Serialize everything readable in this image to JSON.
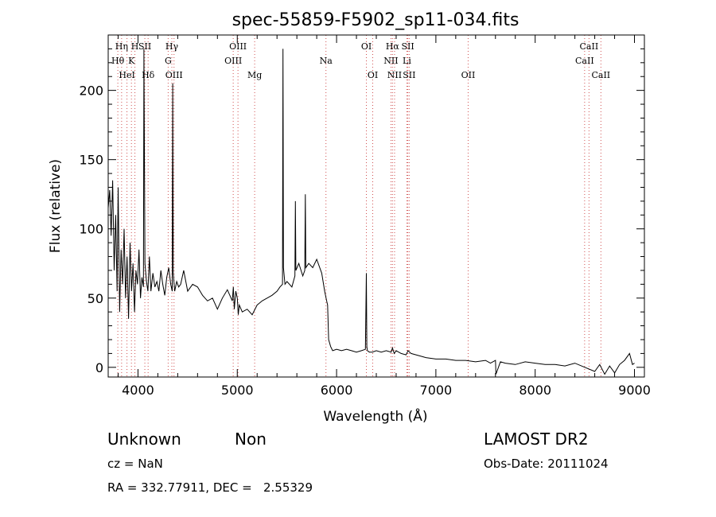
{
  "chart_data": {
    "type": "line",
    "title": "spec-55859-F5902_sp11-034.fits",
    "xlabel": "Wavelength (Å)",
    "ylabel": "Flux (relative)",
    "xlim": [
      3700,
      9100
    ],
    "ylim": [
      -7,
      240
    ],
    "x_ticks": [
      4000,
      5000,
      6000,
      7000,
      8000,
      9000
    ],
    "y_ticks": [
      0,
      50,
      100,
      150,
      200
    ],
    "grid": false,
    "series": [
      {
        "x": [
          3700,
          3715,
          3730,
          3745,
          3760,
          3775,
          3790,
          3800,
          3815,
          3830,
          3845,
          3860,
          3875,
          3890,
          3905,
          3920,
          3935,
          3950,
          3965,
          3980,
          3995,
          4010,
          4025,
          4040,
          4055,
          4060,
          4070,
          4085,
          4100,
          4115,
          4130,
          4150,
          4170,
          4190,
          4210,
          4230,
          4250,
          4270,
          4290,
          4310,
          4330,
          4345,
          4350,
          4355,
          4370,
          4390,
          4410,
          4430,
          4460,
          4500,
          4550,
          4600,
          4650,
          4700,
          4750,
          4800,
          4850,
          4900,
          4950,
          4960,
          4970,
          4985,
          5000,
          5010,
          5020,
          5050,
          5100,
          5150,
          5200,
          5250,
          5300,
          5350,
          5400,
          5430,
          5455,
          5460,
          5465,
          5480,
          5500,
          5550,
          5580,
          5585,
          5590,
          5620,
          5660,
          5680,
          5685,
          5690,
          5720,
          5760,
          5800,
          5850,
          5880,
          5900,
          5910,
          5920,
          5940,
          5960,
          6000,
          6050,
          6100,
          6150,
          6200,
          6250,
          6290,
          6300,
          6305,
          6310,
          6330,
          6360,
          6400,
          6450,
          6500,
          6550,
          6563,
          6580,
          6600,
          6650,
          6700,
          6720,
          6750,
          6800,
          6850,
          6900,
          7000,
          7100,
          7200,
          7300,
          7400,
          7500,
          7550,
          7600,
          7605,
          7650,
          7700,
          7800,
          7900,
          8000,
          8100,
          8200,
          8300,
          8400,
          8500,
          8600,
          8650,
          8700,
          8750,
          8800,
          8850,
          8900,
          8950,
          8980,
          9000
        ],
        "y": [
          115,
          128,
          95,
          135,
          70,
          110,
          55,
          130,
          40,
          85,
          60,
          100,
          50,
          80,
          35,
          90,
          55,
          75,
          40,
          70,
          60,
          85,
          50,
          65,
          58,
          230,
          75,
          62,
          55,
          80,
          55,
          68,
          58,
          62,
          55,
          70,
          60,
          52,
          65,
          72,
          60,
          55,
          205,
          68,
          55,
          62,
          58,
          60,
          70,
          55,
          60,
          58,
          52,
          48,
          50,
          42,
          50,
          56,
          48,
          58,
          42,
          55,
          50,
          38,
          45,
          40,
          42,
          38,
          45,
          48,
          50,
          52,
          55,
          58,
          60,
          230,
          72,
          60,
          62,
          58,
          66,
          120,
          70,
          75,
          66,
          70,
          125,
          72,
          75,
          72,
          78,
          68,
          55,
          48,
          45,
          20,
          15,
          12,
          13,
          12,
          13,
          12,
          11,
          12,
          13,
          68,
          15,
          12,
          11,
          11,
          12,
          11,
          12,
          11,
          14,
          10,
          12,
          10,
          9,
          12,
          10,
          9,
          8,
          7,
          6,
          6,
          5,
          5,
          4,
          5,
          3,
          5,
          -5,
          4,
          3,
          2,
          4,
          3,
          2,
          2,
          1,
          3,
          0,
          -3,
          2,
          -5,
          1,
          -4,
          2,
          5,
          10,
          2,
          3
        ]
      }
    ],
    "line_markers": [
      {
        "label": "Hη",
        "x": 3835,
        "row": 0
      },
      {
        "label": "Hθ",
        "x": 3797,
        "row": 1
      },
      {
        "label": "HeI",
        "x": 3889,
        "row": 2
      },
      {
        "label": "K",
        "x": 3934,
        "row": 1
      },
      {
        "label": "H",
        "x": 3969,
        "row": 0
      },
      {
        "label": "SII",
        "x": 4069,
        "row": 0
      },
      {
        "label": "Hδ",
        "x": 4102,
        "row": 2
      },
      {
        "label": "Hγ",
        "x": 4341,
        "row": 0
      },
      {
        "label": "G",
        "x": 4304,
        "row": 1
      },
      {
        "label": "OIII",
        "x": 4363,
        "row": 2
      },
      {
        "label": "OIII",
        "x": 5007,
        "row": 0
      },
      {
        "label": "OIII",
        "x": 4959,
        "row": 1
      },
      {
        "label": "Mg",
        "x": 5175,
        "row": 2
      },
      {
        "label": "Na",
        "x": 5893,
        "row": 1
      },
      {
        "label": "OI",
        "x": 6300,
        "row": 0
      },
      {
        "label": "OI",
        "x": 6364,
        "row": 2
      },
      {
        "label": "Hα",
        "x": 6563,
        "row": 0
      },
      {
        "label": "NII",
        "x": 6548,
        "row": 1
      },
      {
        "label": "NII",
        "x": 6584,
        "row": 2
      },
      {
        "label": "SII",
        "x": 6717,
        "row": 0
      },
      {
        "label": "Li",
        "x": 6708,
        "row": 1
      },
      {
        "label": "SII",
        "x": 6731,
        "row": 2
      },
      {
        "label": "OII",
        "x": 7325,
        "row": 2
      },
      {
        "label": "CaII",
        "x": 8542,
        "row": 0
      },
      {
        "label": "CaII",
        "x": 8498,
        "row": 1
      },
      {
        "label": "CaII",
        "x": 8662,
        "row": 2
      }
    ],
    "line_positions": [
      3797,
      3835,
      3889,
      3934,
      3969,
      4069,
      4102,
      4304,
      4341,
      4363,
      4959,
      5007,
      5175,
      5893,
      6300,
      6364,
      6548,
      6563,
      6584,
      6708,
      6717,
      6731,
      7325,
      8498,
      8542,
      8662
    ]
  },
  "info": {
    "class": "Unknown",
    "subclass": "Non",
    "survey": "LAMOST DR2",
    "cz": "cz = NaN",
    "obs_date": "Obs-Date: 20111024",
    "radec": "RA = 332.77911, DEC =   2.55329"
  },
  "colors": {
    "spectrum": "#000000",
    "marker": "#d05050",
    "axes": "#000000"
  }
}
